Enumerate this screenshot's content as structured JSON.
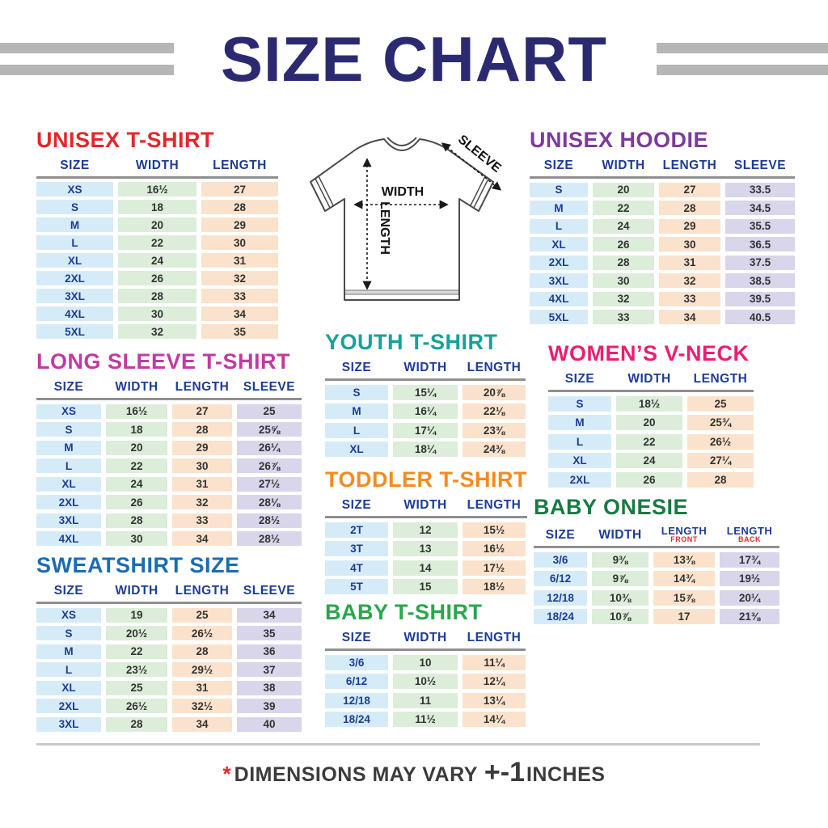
{
  "title": "SIZE CHART",
  "colors": {
    "title_navy": "#2b2a71",
    "header_navy": "#1d3c94",
    "cell_blue": "#d6ebf8",
    "cell_green": "#dcedda",
    "cell_peach": "#fbe2cc",
    "cell_lavender": "#d9d5eb",
    "decor_gray": "#b6b6b9",
    "note_red": "#e52629"
  },
  "diagram": {
    "width_label": "WIDTH",
    "length_label": "LENGTH",
    "sleeve_label": "SLEEVE"
  },
  "footer": {
    "asterisk": "*",
    "text": "DIMENSIONS MAY VARY",
    "plusminus": "+-1",
    "unit": "INCHES"
  },
  "chart_data": [
    {
      "type": "table",
      "title": "UNISEX T-SHIRT",
      "accent": "#e52629",
      "columns": [
        "SIZE",
        "WIDTH",
        "LENGTH"
      ],
      "rows": [
        [
          "XS",
          "16½",
          "27"
        ],
        [
          "S",
          "18",
          "28"
        ],
        [
          "M",
          "20",
          "29"
        ],
        [
          "L",
          "22",
          "30"
        ],
        [
          "XL",
          "24",
          "31"
        ],
        [
          "2XL",
          "26",
          "32"
        ],
        [
          "3XL",
          "28",
          "33"
        ],
        [
          "4XL",
          "30",
          "34"
        ],
        [
          "5XL",
          "32",
          "35"
        ]
      ]
    },
    {
      "type": "table",
      "title": "UNISEX HOODIE",
      "accent": "#7c3a9e",
      "columns": [
        "SIZE",
        "WIDTH",
        "LENGTH",
        "SLEEVE"
      ],
      "rows": [
        [
          "S",
          "20",
          "27",
          "33.5"
        ],
        [
          "M",
          "22",
          "28",
          "34.5"
        ],
        [
          "L",
          "24",
          "29",
          "35.5"
        ],
        [
          "XL",
          "26",
          "30",
          "36.5"
        ],
        [
          "2XL",
          "28",
          "31",
          "37.5"
        ],
        [
          "3XL",
          "30",
          "32",
          "38.5"
        ],
        [
          "4XL",
          "32",
          "33",
          "39.5"
        ],
        [
          "5XL",
          "33",
          "34",
          "40.5"
        ]
      ]
    },
    {
      "type": "table",
      "title": "LONG SLEEVE T-SHIRT",
      "accent": "#c23a9f",
      "columns": [
        "SIZE",
        "WIDTH",
        "LENGTH",
        "SLEEVE"
      ],
      "rows": [
        [
          "XS",
          "16½",
          "27",
          "25"
        ],
        [
          "S",
          "18",
          "28",
          "25⅝"
        ],
        [
          "M",
          "20",
          "29",
          "26¼"
        ],
        [
          "L",
          "22",
          "30",
          "26⅞"
        ],
        [
          "XL",
          "24",
          "31",
          "27½"
        ],
        [
          "2XL",
          "26",
          "32",
          "28⅛"
        ],
        [
          "3XL",
          "28",
          "33",
          "28½"
        ],
        [
          "4XL",
          "30",
          "34",
          "28½"
        ]
      ]
    },
    {
      "type": "table",
      "title": "YOUTH T-SHIRT",
      "accent": "#16a299",
      "columns": [
        "SIZE",
        "WIDTH",
        "LENGTH"
      ],
      "rows": [
        [
          "S",
          "15¼",
          "20⅞"
        ],
        [
          "M",
          "16¼",
          "22⅛"
        ],
        [
          "L",
          "17¼",
          "23⅜"
        ],
        [
          "XL",
          "18¼",
          "24⅜"
        ]
      ]
    },
    {
      "type": "table",
      "title": "WOMEN’S V-NECK",
      "accent": "#ee1c72",
      "columns": [
        "SIZE",
        "WIDTH",
        "LENGTH"
      ],
      "rows": [
        [
          "S",
          "18½",
          "25"
        ],
        [
          "M",
          "20",
          "25¾"
        ],
        [
          "L",
          "22",
          "26½"
        ],
        [
          "XL",
          "24",
          "27¼"
        ],
        [
          "2XL",
          "26",
          "28"
        ]
      ]
    },
    {
      "type": "table",
      "title": "TODDLER T-SHIRT",
      "accent": "#f68b1e",
      "columns": [
        "SIZE",
        "WIDTH",
        "LENGTH"
      ],
      "rows": [
        [
          "2T",
          "12",
          "15½"
        ],
        [
          "3T",
          "13",
          "16½"
        ],
        [
          "4T",
          "14",
          "17½"
        ],
        [
          "5T",
          "15",
          "18½"
        ]
      ]
    },
    {
      "type": "table",
      "title": "BABY ONESIE",
      "accent": "#177a43",
      "columns": [
        "SIZE",
        "WIDTH",
        "LENGTH",
        "LENGTH"
      ],
      "subcolumns": [
        "",
        "",
        "FRONT",
        "BACK"
      ],
      "rows": [
        [
          "3/6",
          "9⅜",
          "13⅜",
          "17¾"
        ],
        [
          "6/12",
          "9⅞",
          "14¾",
          "19½"
        ],
        [
          "12/18",
          "10⅜",
          "15⅞",
          "20¼"
        ],
        [
          "18/24",
          "10⅞",
          "17",
          "21⅜"
        ]
      ]
    },
    {
      "type": "table",
      "title": "SWEATSHIRT SIZE",
      "accent": "#1b6cb4",
      "columns": [
        "SIZE",
        "WIDTH",
        "LENGTH",
        "SLEEVE"
      ],
      "rows": [
        [
          "XS",
          "19",
          "25",
          "34"
        ],
        [
          "S",
          "20½",
          "26½",
          "35"
        ],
        [
          "M",
          "22",
          "28",
          "36"
        ],
        [
          "L",
          "23½",
          "29½",
          "37"
        ],
        [
          "XL",
          "25",
          "31",
          "38"
        ],
        [
          "2XL",
          "26½",
          "32½",
          "39"
        ],
        [
          "3XL",
          "28",
          "34",
          "40"
        ]
      ]
    },
    {
      "type": "table",
      "title": "BABY T-SHIRT",
      "accent": "#2aa64d",
      "columns": [
        "SIZE",
        "WIDTH",
        "LENGTH"
      ],
      "rows": [
        [
          "3/6",
          "10",
          "11¼"
        ],
        [
          "6/12",
          "10½",
          "12¼"
        ],
        [
          "12/18",
          "11",
          "13¼"
        ],
        [
          "18/24",
          "11½",
          "14¼"
        ]
      ]
    }
  ]
}
